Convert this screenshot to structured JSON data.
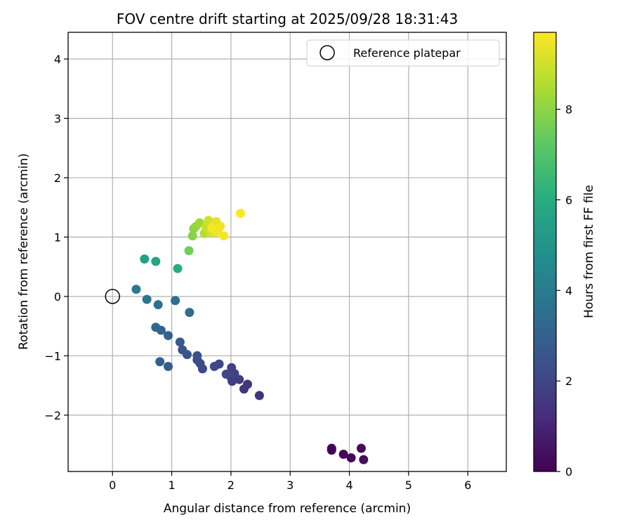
{
  "chart_data": {
    "type": "scatter",
    "title": "FOV centre drift starting at 2025/09/28 18:31:43",
    "xlabel": "Angular distance from reference (arcmin)",
    "ylabel": "Rotation from reference (arcmin)",
    "xlim": [
      -0.75,
      6.65
    ],
    "ylim": [
      -2.95,
      4.45
    ],
    "xticks": [
      0,
      1,
      2,
      3,
      4,
      5,
      6
    ],
    "yticks": [
      -2,
      -1,
      0,
      1,
      2,
      3,
      4
    ],
    "xtick_labels": [
      "0",
      "1",
      "2",
      "3",
      "4",
      "5",
      "6"
    ],
    "ytick_labels": [
      "−2",
      "−1",
      "0",
      "1",
      "2",
      "3",
      "4"
    ],
    "grid": true,
    "legend": {
      "position": "top-right",
      "entries": [
        {
          "label": "Reference platepar",
          "marker": "open-circle"
        }
      ]
    },
    "reference_point": {
      "x": 0,
      "y": 0
    },
    "colorbar": {
      "label": "Hours from first FF file",
      "range": [
        0,
        9.7
      ],
      "ticks": [
        0,
        2,
        4,
        6,
        8
      ],
      "tick_labels": [
        "0",
        "2",
        "4",
        "6",
        "8"
      ],
      "colormap": "viridis"
    },
    "points": [
      {
        "x": 3.7,
        "y": -2.59,
        "t": 0.05
      },
      {
        "x": 3.7,
        "y": -2.56,
        "t": 0.1
      },
      {
        "x": 3.9,
        "y": -2.66,
        "t": 0.15
      },
      {
        "x": 4.03,
        "y": -2.72,
        "t": 0.2
      },
      {
        "x": 4.2,
        "y": -2.56,
        "t": 0.25
      },
      {
        "x": 4.24,
        "y": -2.75,
        "t": 0.3
      },
      {
        "x": 2.48,
        "y": -1.67,
        "t": 1.4
      },
      {
        "x": 2.28,
        "y": -1.48,
        "t": 1.5
      },
      {
        "x": 2.22,
        "y": -1.56,
        "t": 1.6
      },
      {
        "x": 2.14,
        "y": -1.4,
        "t": 1.7
      },
      {
        "x": 2.02,
        "y": -1.43,
        "t": 1.8
      },
      {
        "x": 2.0,
        "y": -1.36,
        "t": 1.8
      },
      {
        "x": 2.06,
        "y": -1.3,
        "t": 1.9
      },
      {
        "x": 2.01,
        "y": -1.2,
        "t": 1.9
      },
      {
        "x": 1.92,
        "y": -1.31,
        "t": 2.0
      },
      {
        "x": 1.8,
        "y": -1.14,
        "t": 2.0
      },
      {
        "x": 1.72,
        "y": -1.18,
        "t": 2.1
      },
      {
        "x": 1.52,
        "y": -1.22,
        "t": 2.1
      },
      {
        "x": 1.48,
        "y": -1.13,
        "t": 2.2
      },
      {
        "x": 1.43,
        "y": -1.07,
        "t": 2.3
      },
      {
        "x": 1.43,
        "y": -1.0,
        "t": 2.4
      },
      {
        "x": 1.26,
        "y": -0.98,
        "t": 2.5
      },
      {
        "x": 1.18,
        "y": -0.9,
        "t": 2.6
      },
      {
        "x": 1.14,
        "y": -0.77,
        "t": 2.7
      },
      {
        "x": 0.94,
        "y": -1.18,
        "t": 2.8
      },
      {
        "x": 0.8,
        "y": -1.1,
        "t": 2.9
      },
      {
        "x": 0.94,
        "y": -0.66,
        "t": 3.0
      },
      {
        "x": 0.82,
        "y": -0.57,
        "t": 3.1
      },
      {
        "x": 0.73,
        "y": -0.52,
        "t": 3.2
      },
      {
        "x": 1.3,
        "y": -0.27,
        "t": 3.4
      },
      {
        "x": 1.06,
        "y": -0.07,
        "t": 3.5
      },
      {
        "x": 0.77,
        "y": -0.14,
        "t": 3.6
      },
      {
        "x": 0.58,
        "y": -0.05,
        "t": 3.8
      },
      {
        "x": 0.4,
        "y": 0.12,
        "t": 4.0
      },
      {
        "x": 0.54,
        "y": 0.63,
        "t": 5.5
      },
      {
        "x": 0.73,
        "y": 0.59,
        "t": 5.7
      },
      {
        "x": 1.1,
        "y": 0.47,
        "t": 5.9
      },
      {
        "x": 1.29,
        "y": 0.77,
        "t": 7.6
      },
      {
        "x": 1.35,
        "y": 1.02,
        "t": 7.9
      },
      {
        "x": 1.37,
        "y": 1.14,
        "t": 8.0
      },
      {
        "x": 1.41,
        "y": 1.18,
        "t": 8.1
      },
      {
        "x": 1.47,
        "y": 1.24,
        "t": 8.3
      },
      {
        "x": 1.55,
        "y": 1.06,
        "t": 8.6
      },
      {
        "x": 1.58,
        "y": 1.16,
        "t": 8.8
      },
      {
        "x": 1.62,
        "y": 1.28,
        "t": 9.0
      },
      {
        "x": 1.66,
        "y": 1.08,
        "t": 9.1
      },
      {
        "x": 1.7,
        "y": 1.2,
        "t": 9.2
      },
      {
        "x": 1.75,
        "y": 1.26,
        "t": 9.3
      },
      {
        "x": 1.78,
        "y": 1.12,
        "t": 9.4
      },
      {
        "x": 1.82,
        "y": 1.18,
        "t": 9.5
      },
      {
        "x": 1.74,
        "y": 1.08,
        "t": 9.5
      },
      {
        "x": 1.88,
        "y": 1.02,
        "t": 9.6
      },
      {
        "x": 1.68,
        "y": 1.16,
        "t": 9.6
      },
      {
        "x": 2.16,
        "y": 1.4,
        "t": 9.7
      }
    ]
  }
}
